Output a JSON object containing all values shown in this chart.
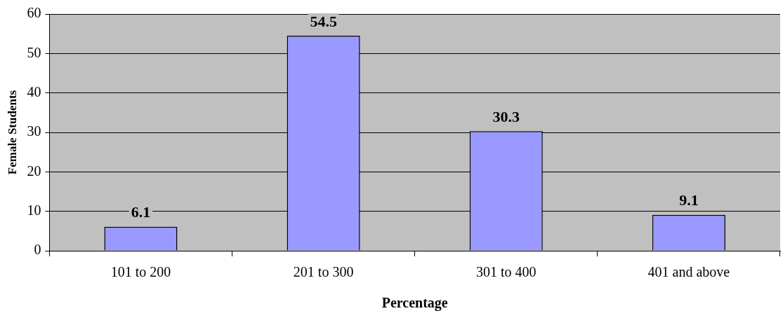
{
  "chart_data": {
    "type": "bar",
    "xlabel": "Percentage",
    "ylabel": "Female Students",
    "categories": [
      "101 to 200",
      "201 to 300",
      "301 to 400",
      "401 and above"
    ],
    "values": [
      6.1,
      54.5,
      30.3,
      9.1
    ],
    "color": "#9999ff",
    "ylim": [
      0,
      60
    ],
    "yticks": [
      0,
      10,
      20,
      30,
      40,
      50,
      60
    ],
    "grid": "y",
    "legend": false,
    "data_labels": true
  }
}
